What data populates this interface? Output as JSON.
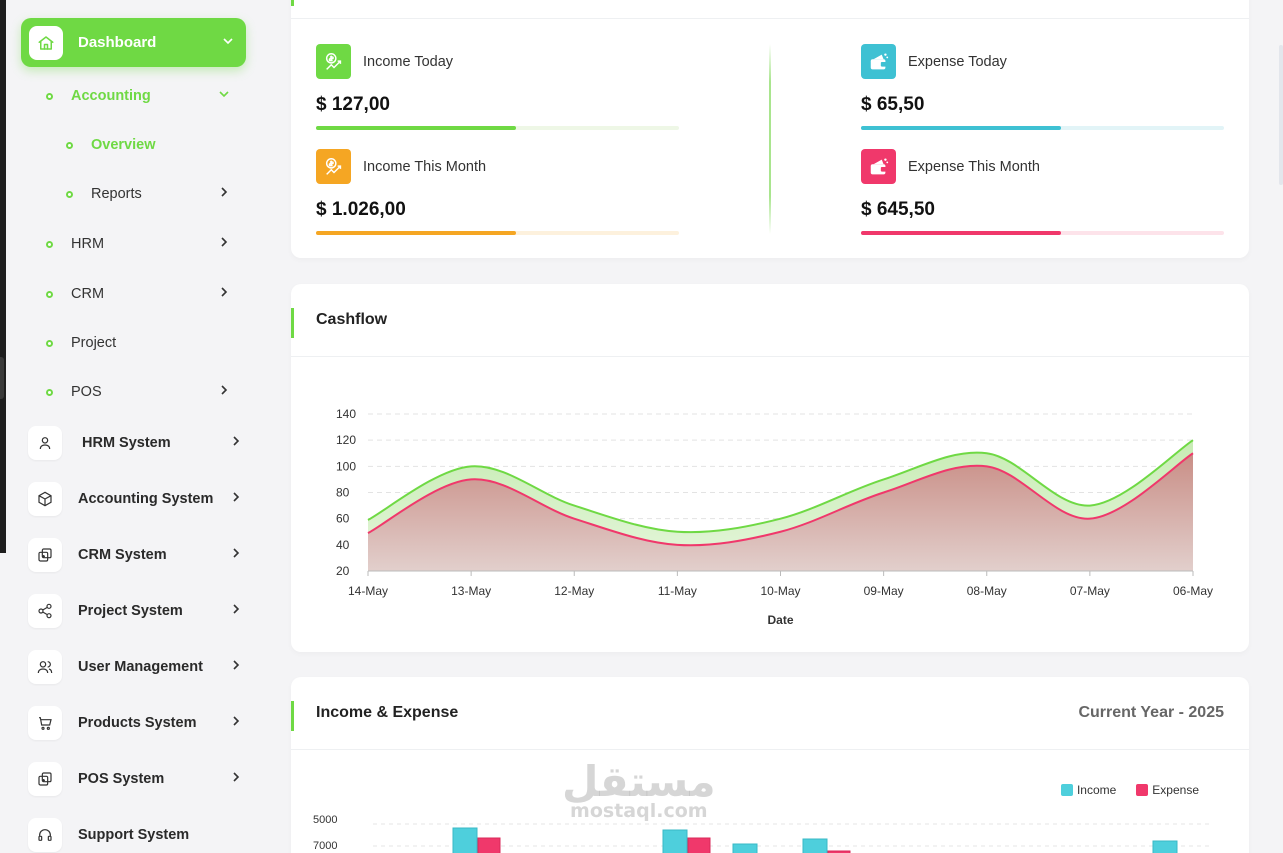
{
  "sidebar": {
    "dashboard": {
      "label": "Dashboard",
      "icon": "home-icon"
    },
    "sub_items": [
      {
        "label": "Accounting",
        "level": 1,
        "active": true,
        "expanded": true
      },
      {
        "label": "Overview",
        "level": 2,
        "active": true
      },
      {
        "label": "Reports",
        "level": 2,
        "has_children": true
      },
      {
        "label": "HRM",
        "level": 1,
        "has_children": true
      },
      {
        "label": "CRM",
        "level": 1,
        "has_children": true
      },
      {
        "label": "Project",
        "level": 1
      },
      {
        "label": "POS",
        "level": 1,
        "has_children": true
      }
    ],
    "systems": [
      {
        "label": "HRM System",
        "icon": "user-icon"
      },
      {
        "label": "Accounting System",
        "icon": "box-icon"
      },
      {
        "label": "CRM System",
        "icon": "layers-icon"
      },
      {
        "label": "Project System",
        "icon": "share-icon"
      },
      {
        "label": "User Management",
        "icon": "users-icon"
      },
      {
        "label": "Products System",
        "icon": "cart-icon"
      },
      {
        "label": "POS System",
        "icon": "layers-icon"
      },
      {
        "label": "Support System",
        "icon": "headset-icon"
      }
    ]
  },
  "stats": {
    "income_today": {
      "label": "Income Today",
      "value": "$ 127,00",
      "progress": 0.55,
      "color": "#6fd944",
      "track": "#eef7e6"
    },
    "income_month": {
      "label": "Income This Month",
      "value": "$ 1.026,00",
      "progress": 0.55,
      "color": "#f5a623",
      "track": "#fdf1dd"
    },
    "expense_today": {
      "label": "Expense Today",
      "value": "$ 65,50",
      "progress": 0.55,
      "color": "#3ec1d3",
      "track": "#e2f4f7"
    },
    "expense_month": {
      "label": "Expense This Month",
      "value": "$ 645,50",
      "progress": 0.55,
      "color": "#f0386b",
      "track": "#fde3ea"
    }
  },
  "cashflow": {
    "title": "Cashflow"
  },
  "chart_data": [
    {
      "type": "area",
      "title": "Cashflow",
      "xlabel": "Date",
      "ylabel": "",
      "ylim": [
        20,
        140
      ],
      "yticks": [
        20,
        40,
        60,
        80,
        100,
        120,
        140
      ],
      "categories": [
        "14-May",
        "13-May",
        "12-May",
        "11-May",
        "10-May",
        "09-May",
        "08-May",
        "07-May",
        "06-May"
      ],
      "series": [
        {
          "color": "#6fd944",
          "values": [
            59,
            100,
            70,
            50,
            60,
            90,
            110,
            70,
            120
          ]
        },
        {
          "color": "#f0386b",
          "values": [
            49,
            90,
            60,
            40,
            50,
            80,
            100,
            60,
            110
          ]
        }
      ],
      "grid": true
    },
    {
      "type": "bar",
      "title": "Income & Expense",
      "legend": [
        "Income",
        "Expense"
      ],
      "legend_position": "top-right",
      "colors": [
        "#4ecfdc",
        "#f0386b"
      ],
      "partial": true
    }
  ],
  "income_expense": {
    "title": "Income & Expense",
    "period": "Current Year - 2025",
    "legend_income": "Income",
    "legend_expense": "Expense",
    "ytick_a": "5000",
    "ytick_b": "7000"
  },
  "watermark": {
    "arabic": "مستقل",
    "latin": "mostaql.com"
  }
}
